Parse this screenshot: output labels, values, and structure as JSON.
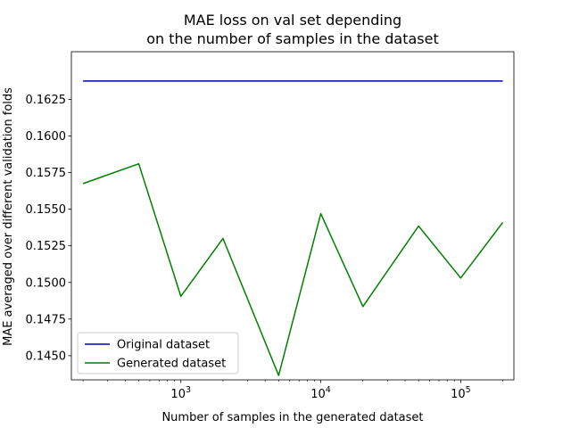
{
  "chart_data": {
    "type": "line",
    "title_lines": [
      "MAE loss on val set depending",
      "on the number of samples in the dataset"
    ],
    "xlabel": "Number of samples in the generated dataset",
    "ylabel": "MAE averaged over different validation folds",
    "x_scale": "log",
    "xlim": [
      165,
      240000
    ],
    "ylim": [
      0.14335,
      0.16575
    ],
    "x_ticks": [
      {
        "value": 1000,
        "base": "10",
        "exp": "3"
      },
      {
        "value": 10000,
        "base": "10",
        "exp": "4"
      },
      {
        "value": 100000,
        "base": "10",
        "exp": "5"
      }
    ],
    "y_ticks": [
      0.145,
      0.1475,
      0.15,
      0.1525,
      0.155,
      0.1575,
      0.16,
      0.1625
    ],
    "y_tick_labels": [
      "0.1450",
      "0.1475",
      "0.1500",
      "0.1525",
      "0.1550",
      "0.1575",
      "0.1600",
      "0.1625"
    ],
    "grid": false,
    "legend_position": "lower-left",
    "series": [
      {
        "name": "Original dataset",
        "color": "#0000bf",
        "x": [
          200,
          500,
          1000,
          2000,
          5000,
          10000,
          20000,
          50000,
          100000,
          200000
        ],
        "y": [
          0.16375,
          0.16375,
          0.16375,
          0.16375,
          0.16375,
          0.16375,
          0.16375,
          0.16375,
          0.16375,
          0.16375
        ]
      },
      {
        "name": "Generated dataset",
        "color": "#008000",
        "x": [
          200,
          500,
          1000,
          2000,
          5000,
          10000,
          20000,
          50000,
          100000,
          200000
        ],
        "y": [
          0.15675,
          0.1581,
          0.14905,
          0.153,
          0.14365,
          0.1547,
          0.14835,
          0.15385,
          0.1503,
          0.1541
        ]
      }
    ]
  }
}
